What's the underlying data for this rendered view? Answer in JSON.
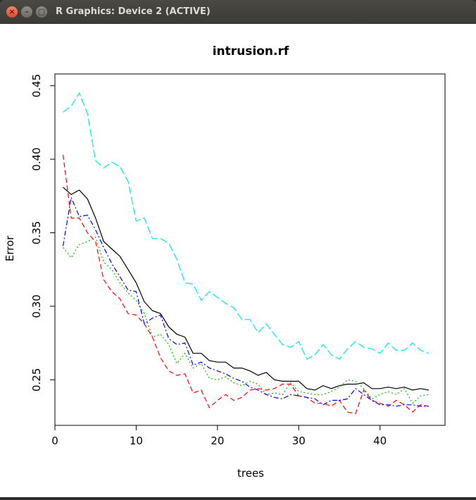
{
  "window": {
    "title": "R Graphics: Device 2 (ACTIVE)",
    "close_glyph": "×",
    "minimize_glyph": "–",
    "maximize_glyph": "□"
  },
  "chart_data": {
    "type": "line",
    "title": "intrusion.rf",
    "xlabel": "trees",
    "ylabel": "Error",
    "xlim": [
      0,
      48
    ],
    "ylim": [
      0.219,
      0.458
    ],
    "xticks": [
      0,
      10,
      20,
      30,
      40
    ],
    "yticks": [
      0.25,
      0.3,
      0.35,
      0.4,
      0.45
    ],
    "grid": false,
    "x": [
      1,
      2,
      3,
      4,
      5,
      6,
      7,
      8,
      9,
      10,
      11,
      12,
      13,
      14,
      15,
      16,
      17,
      18,
      19,
      20,
      21,
      22,
      23,
      24,
      25,
      26,
      27,
      28,
      29,
      30,
      31,
      32,
      33,
      34,
      35,
      36,
      37,
      38,
      39,
      40,
      41,
      42,
      43,
      44,
      45,
      46
    ],
    "series": [
      {
        "color": "#000000",
        "dash": "solid",
        "values": [
          0.381,
          0.376,
          0.379,
          0.373,
          0.36,
          0.344,
          0.339,
          0.334,
          0.325,
          0.316,
          0.303,
          0.297,
          0.295,
          0.286,
          0.281,
          0.279,
          0.268,
          0.268,
          0.263,
          0.262,
          0.262,
          0.258,
          0.258,
          0.256,
          0.253,
          0.255,
          0.25,
          0.249,
          0.249,
          0.249,
          0.244,
          0.243,
          0.246,
          0.244,
          0.246,
          0.247,
          0.247,
          0.248,
          0.244,
          0.244,
          0.245,
          0.244,
          0.245,
          0.243,
          0.244,
          0.243
        ]
      },
      {
        "color": "#ff0000",
        "dash": "dashed",
        "values": [
          0.403,
          0.36,
          0.36,
          0.35,
          0.344,
          0.318,
          0.31,
          0.305,
          0.295,
          0.294,
          0.288,
          0.279,
          0.265,
          0.256,
          0.253,
          0.254,
          0.241,
          0.243,
          0.231,
          0.236,
          0.24,
          0.236,
          0.238,
          0.243,
          0.244,
          0.243,
          0.244,
          0.247,
          0.247,
          0.239,
          0.238,
          0.234,
          0.234,
          0.232,
          0.236,
          0.228,
          0.227,
          0.243,
          0.236,
          0.234,
          0.232,
          0.236,
          0.233,
          0.228,
          0.233,
          0.232
        ]
      },
      {
        "color": "#00bb00",
        "dash": "dotted",
        "values": [
          0.34,
          0.333,
          0.342,
          0.344,
          0.347,
          0.33,
          0.325,
          0.316,
          0.309,
          0.304,
          0.295,
          0.279,
          0.281,
          0.274,
          0.261,
          0.268,
          0.258,
          0.261,
          0.251,
          0.25,
          0.252,
          0.248,
          0.246,
          0.249,
          0.247,
          0.24,
          0.241,
          0.24,
          0.248,
          0.242,
          0.241,
          0.24,
          0.24,
          0.242,
          0.245,
          0.25,
          0.249,
          0.244,
          0.237,
          0.24,
          0.242,
          0.24,
          0.244,
          0.234,
          0.239,
          0.24
        ]
      },
      {
        "color": "#0000ff",
        "dash": "dashdot",
        "values": [
          0.341,
          0.374,
          0.361,
          0.362,
          0.352,
          0.34,
          0.329,
          0.32,
          0.311,
          0.31,
          0.288,
          0.292,
          0.294,
          0.278,
          0.274,
          0.275,
          0.26,
          0.262,
          0.258,
          0.256,
          0.254,
          0.251,
          0.249,
          0.245,
          0.243,
          0.24,
          0.238,
          0.237,
          0.24,
          0.239,
          0.238,
          0.237,
          0.233,
          0.236,
          0.236,
          0.237,
          0.244,
          0.24,
          0.236,
          0.233,
          0.233,
          0.232,
          0.233,
          0.233,
          0.232,
          0.232
        ]
      },
      {
        "color": "#00e5ee",
        "dash": "longdash",
        "values": [
          0.432,
          0.436,
          0.445,
          0.431,
          0.399,
          0.394,
          0.398,
          0.395,
          0.385,
          0.358,
          0.36,
          0.346,
          0.346,
          0.343,
          0.332,
          0.316,
          0.315,
          0.304,
          0.31,
          0.306,
          0.302,
          0.299,
          0.291,
          0.291,
          0.282,
          0.288,
          0.281,
          0.274,
          0.272,
          0.276,
          0.264,
          0.267,
          0.274,
          0.267,
          0.264,
          0.271,
          0.276,
          0.272,
          0.271,
          0.268,
          0.275,
          0.27,
          0.27,
          0.275,
          0.27,
          0.268
        ]
      }
    ]
  }
}
